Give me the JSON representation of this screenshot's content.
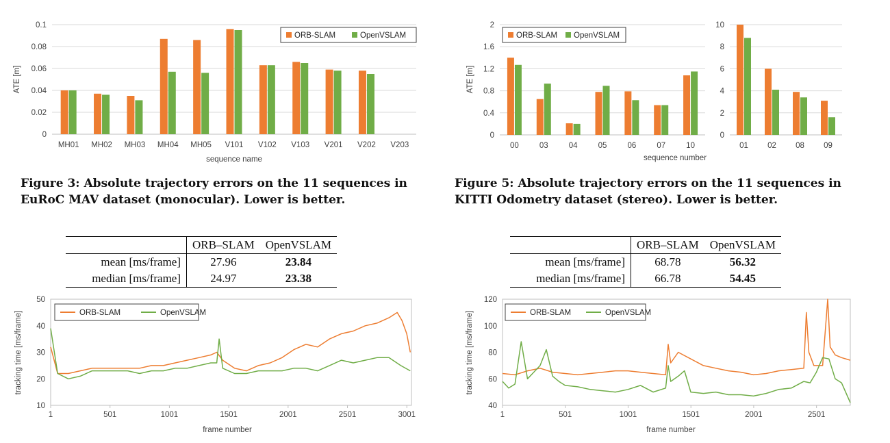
{
  "colors": {
    "orb": "#ED7D31",
    "open": "#70AD47",
    "grid": "#D9D9D9",
    "axis": "#BFBFBF"
  },
  "captions": {
    "fig3": "Figure 3: Absolute trajectory errors on the 11 sequences in EuRoC MAV dataset (monocular). Lower is better.",
    "fig5": "Figure 5: Absolute trajectory errors on the 11 sequences in KITTI Odometry dataset (stereo). Lower is better."
  },
  "tables": [
    {
      "headers": [
        "",
        "ORB–SLAM",
        "OpenVSLAM"
      ],
      "rows": [
        {
          "label": "mean [ms/frame]",
          "orb": "27.96",
          "open": "23.84"
        },
        {
          "label": "median [ms/frame]",
          "orb": "24.97",
          "open": "23.38"
        }
      ]
    },
    {
      "headers": [
        "",
        "ORB–SLAM",
        "OpenVSLAM"
      ],
      "rows": [
        {
          "label": "mean [ms/frame]",
          "orb": "68.78",
          "open": "56.32"
        },
        {
          "label": "median [ms/frame]",
          "orb": "66.78",
          "open": "54.45"
        }
      ]
    }
  ],
  "chart_data": [
    {
      "type": "bar",
      "categories": [
        "MH01",
        "MH02",
        "MH03",
        "MH04",
        "MH05",
        "V101",
        "V102",
        "V103",
        "V201",
        "V202",
        "V203"
      ],
      "series": [
        {
          "name": "ORB-SLAM",
          "values": [
            0.04,
            0.037,
            0.035,
            0.087,
            0.086,
            0.096,
            0.063,
            0.066,
            0.059,
            0.058,
            null
          ]
        },
        {
          "name": "OpenVSLAM",
          "values": [
            0.04,
            0.036,
            0.031,
            0.057,
            0.056,
            0.095,
            0.063,
            0.065,
            0.058,
            0.055,
            null
          ]
        }
      ],
      "xlabel": "sequence name",
      "ylabel": "ATE [m]",
      "ylim": [
        0,
        0.1
      ],
      "yticks": [
        "0",
        "0.02",
        "0.04",
        "0.06",
        "0.08",
        "0.1"
      ],
      "grid": true,
      "legend": "top-right"
    },
    {
      "type": "bar",
      "categories": [
        "00",
        "03",
        "04",
        "05",
        "06",
        "07",
        "10"
      ],
      "series": [
        {
          "name": "ORB-SLAM",
          "values": [
            1.4,
            0.65,
            0.21,
            0.78,
            0.79,
            0.54,
            1.08
          ]
        },
        {
          "name": "OpenVSLAM",
          "values": [
            1.27,
            0.93,
            0.2,
            0.89,
            0.63,
            0.54,
            1.15
          ]
        }
      ],
      "xlabel": "sequence number",
      "ylabel": "ATE [m]",
      "ylim": [
        0,
        2
      ],
      "yticks": [
        "0",
        "0.4",
        "0.8",
        "1.2",
        "1.6",
        "2"
      ],
      "grid": true,
      "legend": "top-left"
    },
    {
      "type": "bar",
      "categories": [
        "01",
        "02",
        "08",
        "09"
      ],
      "series": [
        {
          "name": "ORB-SLAM",
          "values": [
            10.0,
            6.0,
            3.9,
            3.1
          ]
        },
        {
          "name": "OpenVSLAM",
          "values": [
            8.8,
            4.1,
            3.4,
            1.6
          ]
        }
      ],
      "ylim": [
        0,
        10
      ],
      "yticks": [
        "0",
        "2",
        "4",
        "6",
        "8",
        "10"
      ],
      "grid": true
    },
    {
      "type": "line",
      "xlabel": "frame number",
      "ylabel": "tracking time [ms/frame]",
      "xlim": [
        1,
        3040
      ],
      "xticks": [
        "1",
        "501",
        "1001",
        "1501",
        "2001",
        "2501",
        "3001"
      ],
      "ylim": [
        10,
        50
      ],
      "yticks": [
        "10",
        "20",
        "30",
        "40",
        "50"
      ],
      "legend": "top-left",
      "series": [
        {
          "name": "ORB-SLAM",
          "x": [
            1,
            60,
            150,
            250,
            350,
            450,
            550,
            650,
            750,
            850,
            950,
            1050,
            1150,
            1250,
            1350,
            1400,
            1450,
            1550,
            1650,
            1750,
            1850,
            1950,
            2050,
            2150,
            2250,
            2350,
            2450,
            2550,
            2650,
            2750,
            2850,
            2920,
            2960,
            3000,
            3030
          ],
          "y": [
            32,
            22,
            22,
            23,
            24,
            24,
            24,
            24,
            24,
            25,
            25,
            26,
            27,
            28,
            29,
            30,
            27,
            24,
            23,
            25,
            26,
            28,
            31,
            33,
            32,
            35,
            37,
            38,
            40,
            41,
            43,
            45,
            42,
            37,
            30
          ]
        },
        {
          "name": "OpenVSLAM",
          "x": [
            1,
            60,
            150,
            250,
            350,
            450,
            550,
            650,
            750,
            850,
            950,
            1050,
            1150,
            1250,
            1350,
            1400,
            1420,
            1450,
            1550,
            1650,
            1750,
            1850,
            1950,
            2050,
            2150,
            2250,
            2350,
            2450,
            2550,
            2650,
            2750,
            2850,
            2950,
            3030
          ],
          "y": [
            39,
            22,
            20,
            21,
            23,
            23,
            23,
            23,
            22,
            23,
            23,
            24,
            24,
            25,
            26,
            26,
            35,
            24,
            22,
            22,
            23,
            23,
            23,
            24,
            24,
            23,
            25,
            27,
            26,
            27,
            28,
            28,
            25,
            23
          ]
        }
      ]
    },
    {
      "type": "line",
      "xlabel": "frame number",
      "ylabel": "tracking time [ms/frame]",
      "xlim": [
        1,
        2770
      ],
      "xticks": [
        "1",
        "501",
        "1001",
        "1501",
        "2001",
        "2501"
      ],
      "ylim": [
        40,
        120
      ],
      "yticks": [
        "40",
        "60",
        "80",
        "100",
        "120"
      ],
      "legend": "top-left",
      "series": [
        {
          "name": "ORB-SLAM",
          "x": [
            1,
            100,
            200,
            300,
            400,
            500,
            600,
            700,
            800,
            900,
            1000,
            1100,
            1200,
            1300,
            1320,
            1340,
            1400,
            1500,
            1600,
            1700,
            1800,
            1900,
            2000,
            2100,
            2200,
            2300,
            2400,
            2420,
            2440,
            2480,
            2550,
            2590,
            2610,
            2650,
            2700,
            2770
          ],
          "y": [
            64,
            63,
            66,
            68,
            65,
            64,
            63,
            64,
            65,
            66,
            66,
            65,
            64,
            63,
            86,
            72,
            80,
            75,
            70,
            68,
            66,
            65,
            63,
            64,
            66,
            67,
            68,
            110,
            80,
            70,
            70,
            120,
            84,
            78,
            76,
            74
          ]
        },
        {
          "name": "OpenVSLAM",
          "x": [
            1,
            50,
            100,
            150,
            200,
            250,
            300,
            350,
            400,
            450,
            500,
            600,
            700,
            800,
            900,
            1000,
            1100,
            1200,
            1300,
            1320,
            1340,
            1400,
            1450,
            1500,
            1600,
            1700,
            1800,
            1900,
            2000,
            2100,
            2200,
            2300,
            2400,
            2450,
            2500,
            2550,
            2600,
            2650,
            2700,
            2770
          ],
          "y": [
            58,
            53,
            56,
            88,
            60,
            65,
            70,
            82,
            62,
            58,
            55,
            54,
            52,
            51,
            50,
            52,
            55,
            50,
            53,
            70,
            58,
            62,
            66,
            50,
            49,
            50,
            48,
            48,
            47,
            49,
            52,
            53,
            58,
            57,
            65,
            76,
            75,
            60,
            57,
            42
          ]
        }
      ]
    }
  ]
}
